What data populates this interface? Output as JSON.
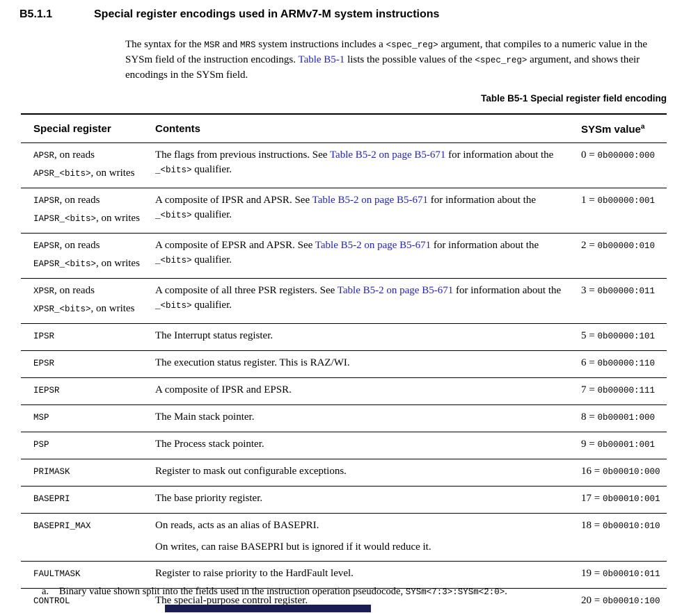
{
  "colors": {
    "link": "#2222cc",
    "text": "#000000",
    "bottom_bar": "#1c1c54"
  },
  "heading": {
    "number": "B5.1.1",
    "title": "Special register encodings used in ARMv7-M system instructions"
  },
  "intro": {
    "segments": [
      [
        "t",
        "The syntax for the "
      ],
      [
        "c",
        "MSR"
      ],
      [
        "t",
        " and "
      ],
      [
        "c",
        "MRS"
      ],
      [
        "t",
        " system instructions includes a "
      ],
      [
        "c",
        "<spec_reg>"
      ],
      [
        "t",
        " argument, that compiles to a numeric value in the SYSm field of the instruction encodings. "
      ],
      [
        "l",
        "Table B5-1"
      ],
      [
        "t",
        " lists the possible values of the "
      ],
      [
        "c",
        "<spec_reg>"
      ],
      [
        "t",
        " argument, and shows their encodings in the SYSm field."
      ]
    ]
  },
  "caption": "Table B5-1 Special register field encoding",
  "table": {
    "headers": {
      "register": "Special register",
      "contents": "Contents",
      "sysm": "SYSm value",
      "sysm_footnote": "a"
    },
    "rows": [
      {
        "register_lines": [
          [
            [
              "c",
              "APSR"
            ],
            [
              "t",
              ", on reads"
            ]
          ],
          [
            [
              "c",
              "APSR_<bits>"
            ],
            [
              "t",
              ", on writes"
            ]
          ]
        ],
        "contents_lines": [
          [
            [
              "t",
              "The flags from previous instructions. See "
            ],
            [
              "l",
              "Table B5-2 on page B5-671"
            ],
            [
              "t",
              " for information about the "
            ],
            [
              "c",
              "_<bits>"
            ],
            [
              "t",
              " qualifier."
            ]
          ]
        ],
        "sysm": {
          "num": "0",
          "code": "0b00000:000"
        }
      },
      {
        "register_lines": [
          [
            [
              "c",
              "IAPSR"
            ],
            [
              "t",
              ", on reads"
            ]
          ],
          [
            [
              "c",
              "IAPSR_<bits>"
            ],
            [
              "t",
              ", on writes"
            ]
          ]
        ],
        "contents_lines": [
          [
            [
              "t",
              "A composite of IPSR and APSR. See "
            ],
            [
              "l",
              "Table B5-2 on page B5-671"
            ],
            [
              "t",
              " for information about the "
            ],
            [
              "c",
              "_<bits>"
            ],
            [
              "t",
              " qualifier."
            ]
          ]
        ],
        "sysm": {
          "num": "1",
          "code": "0b00000:001"
        }
      },
      {
        "register_lines": [
          [
            [
              "c",
              "EAPSR"
            ],
            [
              "t",
              ", on reads"
            ]
          ],
          [
            [
              "c",
              "EAPSR_<bits>"
            ],
            [
              "t",
              ", on writes"
            ]
          ]
        ],
        "contents_lines": [
          [
            [
              "t",
              "A composite of EPSR and APSR. See "
            ],
            [
              "l",
              "Table B5-2 on page B5-671"
            ],
            [
              "t",
              " for information about the "
            ],
            [
              "c",
              "_<bits>"
            ],
            [
              "t",
              " qualifier."
            ]
          ]
        ],
        "sysm": {
          "num": "2",
          "code": "0b00000:010"
        }
      },
      {
        "register_lines": [
          [
            [
              "c",
              "XPSR"
            ],
            [
              "t",
              ", on reads"
            ]
          ],
          [
            [
              "c",
              "XPSR_<bits>"
            ],
            [
              "t",
              ", on writes"
            ]
          ]
        ],
        "contents_lines": [
          [
            [
              "t",
              "A composite of all three PSR registers. See "
            ],
            [
              "l",
              "Table B5-2 on page B5-671"
            ],
            [
              "t",
              " for information about the "
            ],
            [
              "c",
              "_<bits>"
            ],
            [
              "t",
              " qualifier."
            ]
          ]
        ],
        "sysm": {
          "num": "3",
          "code": "0b00000:011"
        }
      },
      {
        "register_lines": [
          [
            [
              "c",
              "IPSR"
            ]
          ]
        ],
        "contents_lines": [
          [
            [
              "t",
              "The Interrupt status register."
            ]
          ]
        ],
        "sysm": {
          "num": "5",
          "code": "0b00000:101"
        }
      },
      {
        "register_lines": [
          [
            [
              "c",
              "EPSR"
            ]
          ]
        ],
        "contents_lines": [
          [
            [
              "t",
              "The execution status register. This is RAZ/WI."
            ]
          ]
        ],
        "sysm": {
          "num": "6",
          "code": "0b00000:110"
        }
      },
      {
        "register_lines": [
          [
            [
              "c",
              "IEPSR"
            ]
          ]
        ],
        "contents_lines": [
          [
            [
              "t",
              "A composite of IPSR and EPSR."
            ]
          ]
        ],
        "sysm": {
          "num": "7",
          "code": "0b00000:111"
        }
      },
      {
        "register_lines": [
          [
            [
              "c",
              "MSP"
            ]
          ]
        ],
        "contents_lines": [
          [
            [
              "t",
              "The Main stack pointer."
            ]
          ]
        ],
        "sysm": {
          "num": "8",
          "code": "0b00001:000"
        }
      },
      {
        "register_lines": [
          [
            [
              "c",
              "PSP"
            ]
          ]
        ],
        "contents_lines": [
          [
            [
              "t",
              "The Process stack pointer."
            ]
          ]
        ],
        "sysm": {
          "num": "9",
          "code": "0b00001:001"
        }
      },
      {
        "register_lines": [
          [
            [
              "c",
              "PRIMASK"
            ]
          ]
        ],
        "contents_lines": [
          [
            [
              "t",
              "Register to mask out configurable exceptions."
            ]
          ]
        ],
        "sysm": {
          "num": "16",
          "code": "0b00010:000"
        }
      },
      {
        "register_lines": [
          [
            [
              "c",
              "BASEPRI"
            ]
          ]
        ],
        "contents_lines": [
          [
            [
              "t",
              "The base priority register."
            ]
          ]
        ],
        "sysm": {
          "num": "17",
          "code": "0b00010:001"
        }
      },
      {
        "register_lines": [
          [
            [
              "c",
              "BASEPRI_MAX"
            ]
          ]
        ],
        "contents_lines": [
          [
            [
              "t",
              "On reads, acts as an alias of BASEPRI."
            ]
          ],
          [
            [
              "t",
              "On writes, can raise BASEPRI but is ignored if it would reduce it."
            ]
          ]
        ],
        "sysm": {
          "num": "18",
          "code": "0b00010:010"
        }
      },
      {
        "register_lines": [
          [
            [
              "c",
              "FAULTMASK"
            ]
          ]
        ],
        "contents_lines": [
          [
            [
              "t",
              "Register to raise priority to the HardFault level."
            ]
          ]
        ],
        "sysm": {
          "num": "19",
          "code": "0b00010:011"
        }
      },
      {
        "register_lines": [
          [
            [
              "c",
              "CONTROL"
            ]
          ]
        ],
        "contents_lines": [
          [
            [
              "t",
              "The special-purpose control register."
            ]
          ]
        ],
        "sysm": {
          "num": "20",
          "code": "0b00010:100"
        }
      }
    ]
  },
  "footnote": {
    "marker": "a.",
    "segments": [
      [
        "t",
        "Binary value shown split into the fields used in the instruction operation pseudocode, "
      ],
      [
        "c",
        "SYSm<7:3>:SYSm<2:0>"
      ],
      [
        "t",
        "."
      ]
    ]
  }
}
